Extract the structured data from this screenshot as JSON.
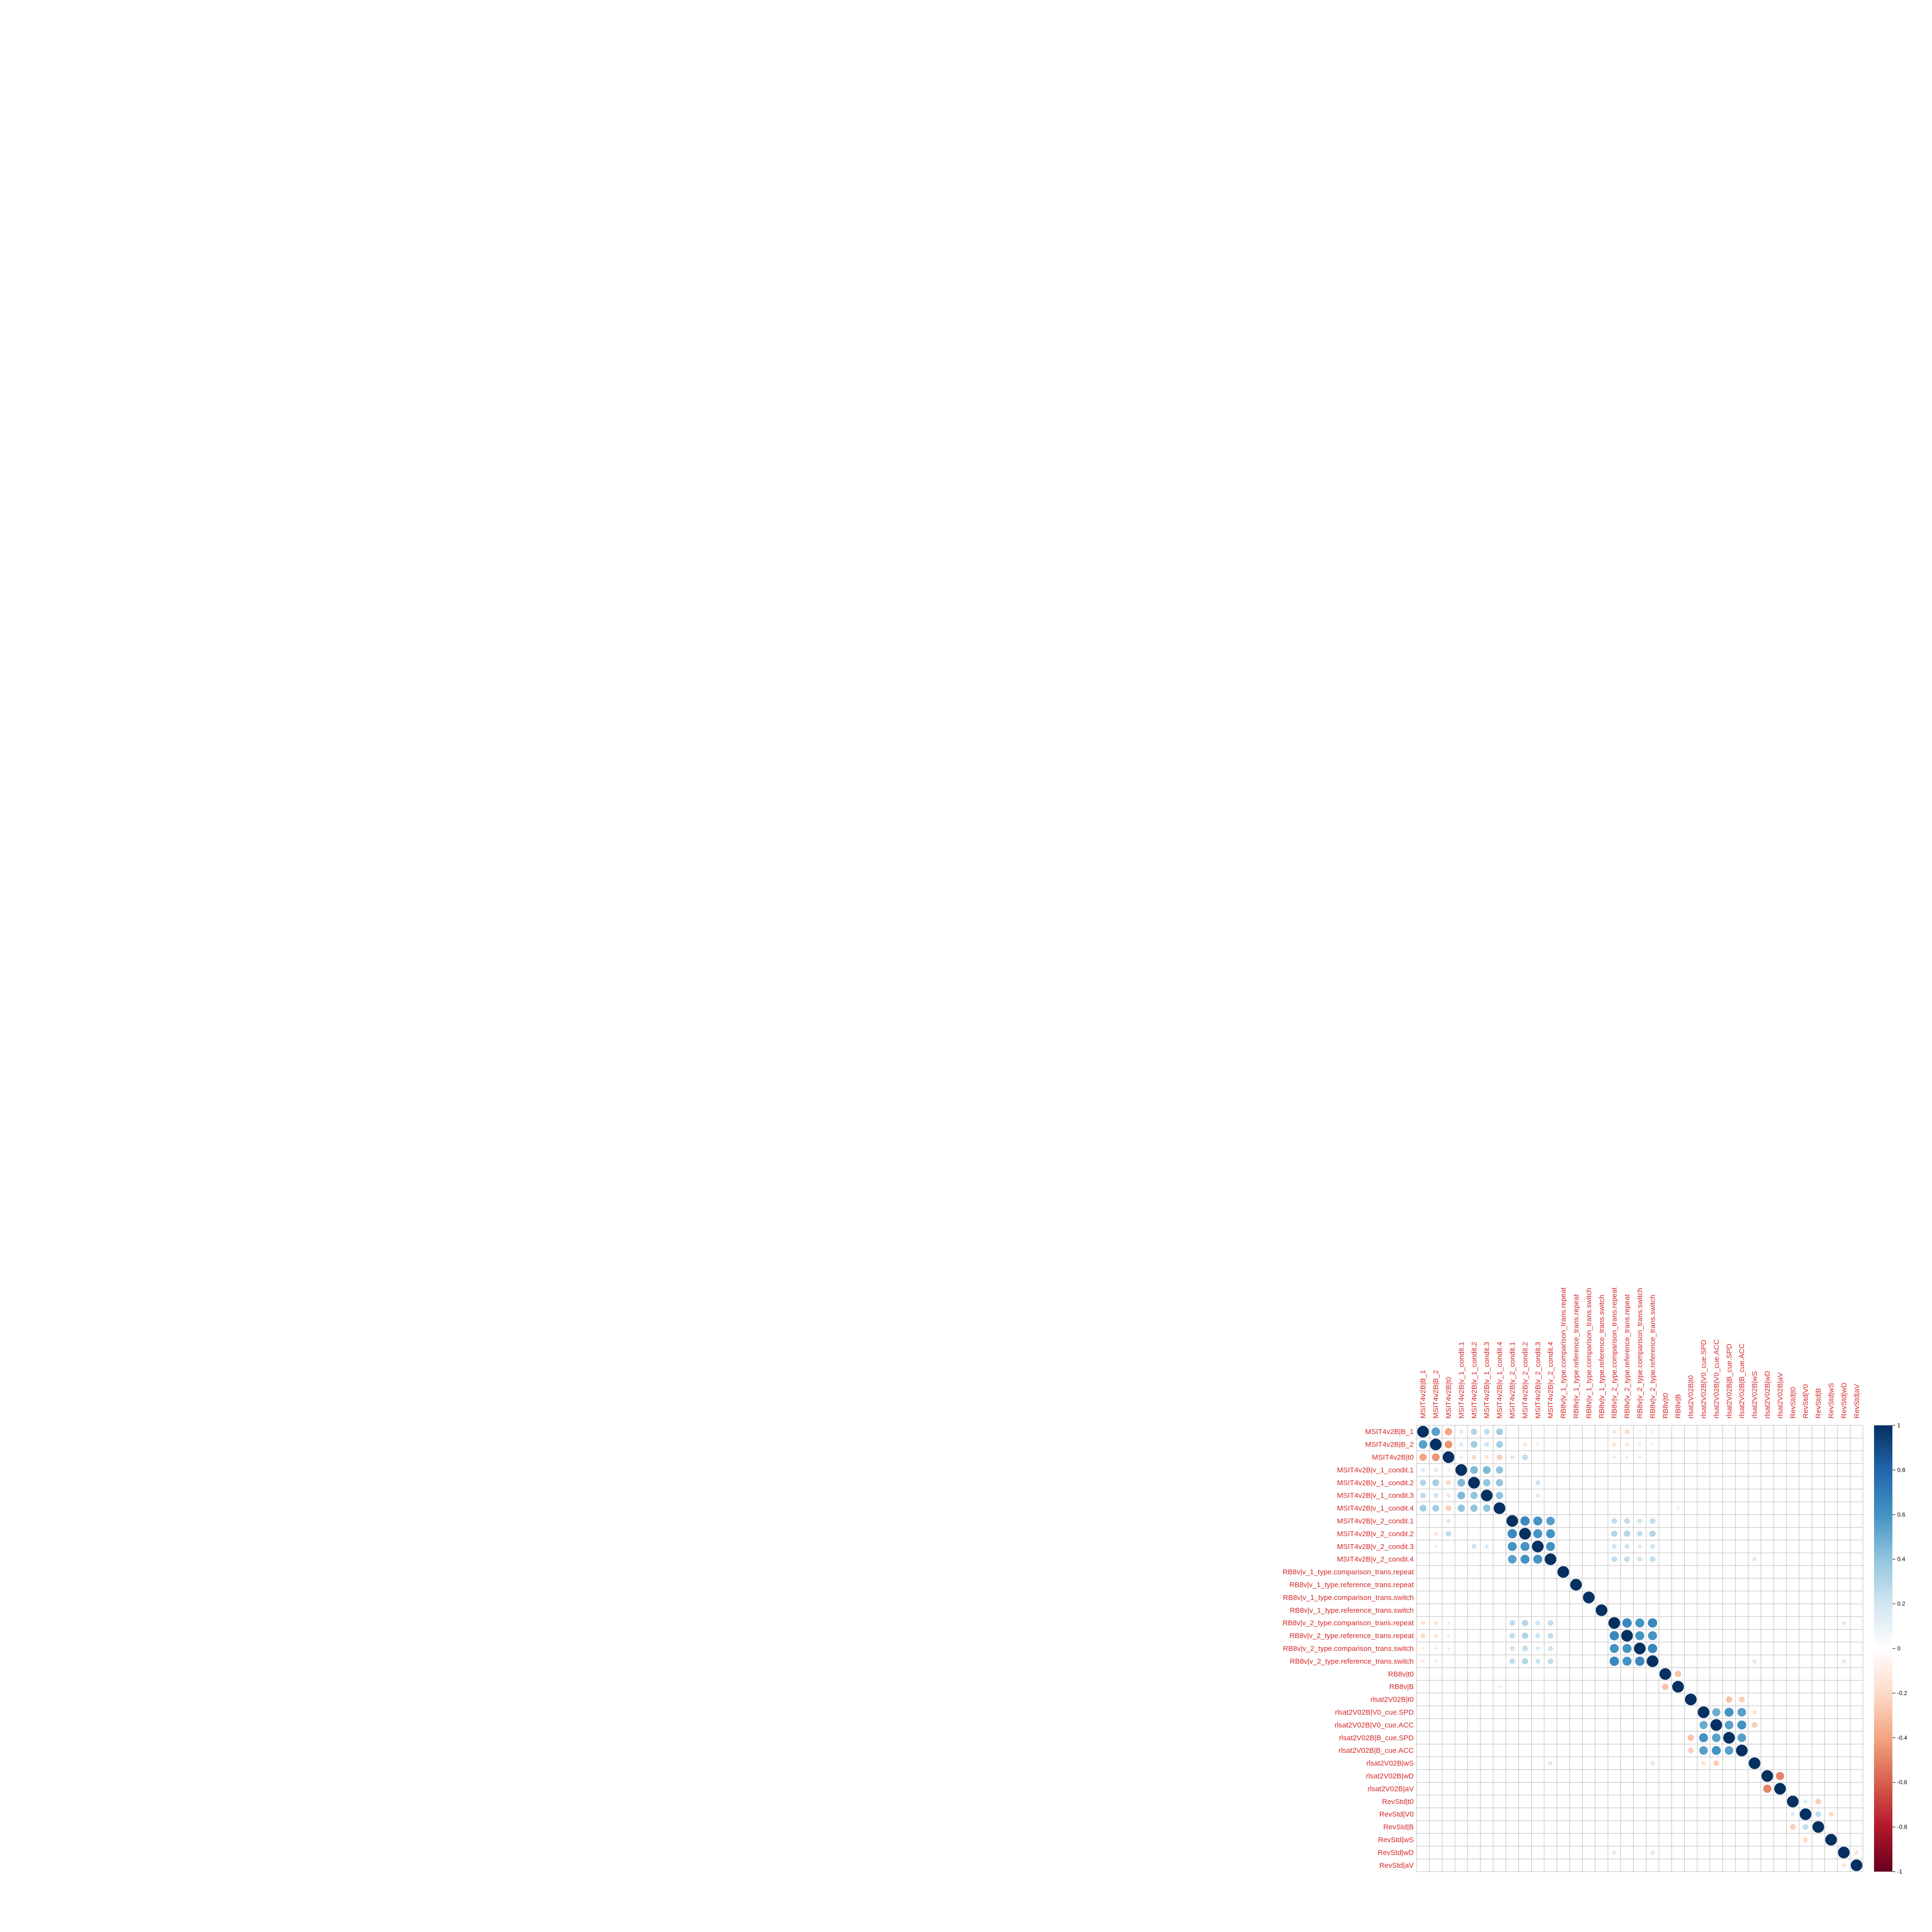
{
  "chart_data": {
    "type": "heatmap",
    "method": "circle",
    "variables": [
      "MSIT4v2B|B_1",
      "MSIT4v2B|B_2",
      "MSIT4v2B|t0",
      "MSIT4v2B|v_1_condit.1",
      "MSIT4v2B|v_1_condit.2",
      "MSIT4v2B|v_1_condit.3",
      "MSIT4v2B|v_1_condit.4",
      "MSIT4v2B|v_2_condit.1",
      "MSIT4v2B|v_2_condit.2",
      "MSIT4v2B|v_2_condit.3",
      "MSIT4v2B|v_2_condit.4",
      "RB8v|v_1_type.comparison_trans.repeat",
      "RB8v|v_1_type.reference_trans.repeat",
      "RB8v|v_1_type.comparison_trans.switch",
      "RB8v|v_1_type.reference_trans.switch",
      "RB8v|v_2_type.comparison_trans.repeat",
      "RB8v|v_2_type.reference_trans.repeat",
      "RB8v|v_2_type.comparison_trans.switch",
      "RB8v|v_2_type.reference_trans.switch",
      "RB8v|t0",
      "RB8v|B",
      "rlsat2V02B|t0",
      "rlsat2V02B|V0_cue.SPD",
      "rlsat2V02B|V0_cue.ACC",
      "rlsat2V02B|B_cue.SPD",
      "rlsat2V02B|B_cue.ACC",
      "rlsat2V02B|wS",
      "rlsat2V02B|wD",
      "rlsat2V02B|aV",
      "RevStd|t0",
      "RevStd|V0",
      "RevStd|B",
      "RevStd|wS",
      "RevStd|wD",
      "RevStd|aV"
    ],
    "correlations": [
      [
        0,
        1,
        0.55
      ],
      [
        0,
        2,
        -0.4
      ],
      [
        0,
        3,
        0.15
      ],
      [
        0,
        4,
        0.3
      ],
      [
        0,
        5,
        0.25
      ],
      [
        0,
        6,
        0.35
      ],
      [
        1,
        2,
        -0.45
      ],
      [
        1,
        3,
        0.15
      ],
      [
        1,
        4,
        0.35
      ],
      [
        1,
        5,
        0.2
      ],
      [
        1,
        6,
        0.35
      ],
      [
        1,
        8,
        -0.15
      ],
      [
        1,
        9,
        0.1
      ],
      [
        2,
        3,
        0.1
      ],
      [
        2,
        4,
        -0.2
      ],
      [
        2,
        5,
        -0.15
      ],
      [
        2,
        6,
        -0.25
      ],
      [
        2,
        7,
        0.15
      ],
      [
        2,
        8,
        0.25
      ],
      [
        3,
        4,
        0.45
      ],
      [
        3,
        5,
        0.45
      ],
      [
        3,
        6,
        0.4
      ],
      [
        4,
        5,
        0.4
      ],
      [
        4,
        6,
        0.4
      ],
      [
        4,
        9,
        0.2
      ],
      [
        5,
        6,
        0.4
      ],
      [
        5,
        9,
        0.15
      ],
      [
        7,
        8,
        0.65
      ],
      [
        7,
        9,
        0.6
      ],
      [
        7,
        10,
        0.55
      ],
      [
        8,
        9,
        0.6
      ],
      [
        8,
        10,
        0.6
      ],
      [
        9,
        10,
        0.6
      ],
      [
        0,
        15,
        -0.15
      ],
      [
        0,
        16,
        -0.2
      ],
      [
        0,
        17,
        -0.1
      ],
      [
        0,
        18,
        -0.1
      ],
      [
        1,
        15,
        -0.15
      ],
      [
        1,
        16,
        -0.15
      ],
      [
        1,
        17,
        -0.1
      ],
      [
        1,
        18,
        -0.1
      ],
      [
        2,
        15,
        0.1
      ],
      [
        2,
        16,
        0.1
      ],
      [
        2,
        17,
        0.1
      ],
      [
        7,
        15,
        0.25
      ],
      [
        7,
        16,
        0.25
      ],
      [
        7,
        17,
        0.2
      ],
      [
        7,
        18,
        0.25
      ],
      [
        8,
        15,
        0.3
      ],
      [
        8,
        16,
        0.3
      ],
      [
        8,
        17,
        0.25
      ],
      [
        8,
        18,
        0.3
      ],
      [
        9,
        15,
        0.2
      ],
      [
        9,
        16,
        0.2
      ],
      [
        9,
        17,
        0.15
      ],
      [
        9,
        18,
        0.2
      ],
      [
        10,
        15,
        0.25
      ],
      [
        10,
        16,
        0.25
      ],
      [
        10,
        17,
        0.2
      ],
      [
        10,
        18,
        0.25
      ],
      [
        15,
        16,
        0.65
      ],
      [
        15,
        17,
        0.6
      ],
      [
        15,
        18,
        0.65
      ],
      [
        16,
        17,
        0.6
      ],
      [
        16,
        18,
        0.6
      ],
      [
        17,
        18,
        0.65
      ],
      [
        19,
        20,
        -0.3
      ],
      [
        21,
        24,
        -0.3
      ],
      [
        21,
        25,
        -0.25
      ],
      [
        22,
        23,
        0.5
      ],
      [
        22,
        24,
        0.6
      ],
      [
        22,
        25,
        0.55
      ],
      [
        22,
        26,
        -0.15
      ],
      [
        23,
        24,
        0.55
      ],
      [
        23,
        25,
        0.6
      ],
      [
        23,
        26,
        -0.25
      ],
      [
        24,
        25,
        0.55
      ],
      [
        27,
        28,
        -0.5
      ],
      [
        29,
        31,
        -0.25
      ],
      [
        29,
        30,
        0.15
      ],
      [
        30,
        31,
        0.25
      ],
      [
        30,
        32,
        -0.2
      ],
      [
        33,
        34,
        -0.15
      ],
      [
        6,
        20,
        0.1
      ],
      [
        10,
        26,
        0.15
      ],
      [
        18,
        26,
        0.15
      ],
      [
        18,
        33,
        0.15
      ],
      [
        15,
        33,
        0.15
      ]
    ],
    "colorbar_ticks": [
      "1",
      "0.8",
      "0.6",
      "0.4",
      "0.2",
      "0",
      "-0.2",
      "-0.4",
      "-0.6",
      "-0.8",
      "-1"
    ],
    "colorbar_range": [
      -1,
      1
    ],
    "colors": {
      "negative_end": "#67001f",
      "mid_negative": "#d6604d",
      "light_negative": "#fddbc7",
      "zero": "#ffffff",
      "light_positive": "#d1e5f0",
      "mid_positive": "#4393c3",
      "positive_end": "#053061",
      "grid": "#bbbbbb",
      "label": "#d62728"
    },
    "grid": true,
    "legend": "right"
  }
}
